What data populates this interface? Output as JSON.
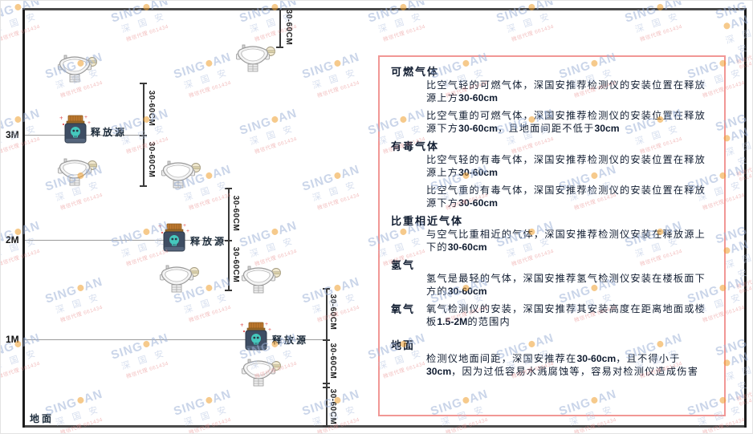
{
  "brand": {
    "watermark_main_pre": "SING",
    "watermark_main_post": "AN",
    "watermark_sub": "深 国 安",
    "watermark_contact": "微信代理 661434",
    "accent_dot_color": "#f0a030"
  },
  "diagram": {
    "scale_labels": [
      "3M",
      "2M",
      "1M"
    ],
    "ground_label": "地面",
    "release_source_label": "释放源",
    "dimension_label": "30-60CM",
    "colors": {
      "wall": "#1b1b1b",
      "slab": "#4a4a4a",
      "panel_border": "#f19795",
      "text": "#101c30",
      "source_body": "#3e4d63",
      "source_lid": "#c07a2e",
      "source_skull": "#45c8bd",
      "sparkle": "#e05555"
    }
  },
  "panel": {
    "sections": [
      {
        "heading": "可燃气体",
        "inline": false,
        "paragraphs": [
          [
            {
              "t": "比空气轻的可燃气体，深国安推荐检测仪的安装位置在释放源上方"
            },
            {
              "t": "30-60cm",
              "b": true
            }
          ],
          [
            {
              "t": "比空气重的可燃气体，深国安推荐检测仪的安装位置在释放源下方"
            },
            {
              "t": "30-60cm",
              "b": true
            },
            {
              "t": "，且地面间距不低于"
            },
            {
              "t": "30cm",
              "b": true
            }
          ]
        ]
      },
      {
        "heading": "有毒气体",
        "inline": false,
        "paragraphs": [
          [
            {
              "t": "比空气轻的有毒气体，深国安推荐检测仪的安装位置在释放源上方"
            },
            {
              "t": "30-60cm",
              "b": true
            }
          ],
          [
            {
              "t": "比空气重的有毒气体，深国安推荐检测仪的安装位置在释放源下方"
            },
            {
              "t": "30-60cm",
              "b": true
            }
          ]
        ]
      },
      {
        "heading": "比重相近气体",
        "inline": false,
        "paragraphs": [
          [
            {
              "t": "与空气比重相近的气体，深国安推荐检测仪安装在释放源上下的"
            },
            {
              "t": "30-60cm",
              "b": true
            }
          ]
        ]
      },
      {
        "heading": "氢气",
        "inline": false,
        "paragraphs": [
          [
            {
              "t": "氢气是最轻的气体，深国安推荐氢气检测仪安装在楼板面下方的"
            },
            {
              "t": "30-60cm",
              "b": true
            }
          ]
        ]
      },
      {
        "heading": "氧气",
        "inline": true,
        "paragraphs": [
          [
            {
              "t": "氧气检测仪的安装，深国安推荐其安装高度在距离地面或楼板"
            },
            {
              "t": "1.5-2M",
              "b": true
            },
            {
              "t": "的范围内"
            }
          ]
        ]
      },
      {
        "heading": "地面",
        "inline": false,
        "paragraphs": [
          [
            {
              "t": "检测仪地面间距，深国安推荐在"
            },
            {
              "t": "30-60cm",
              "b": true
            },
            {
              "t": "，且不得小于"
            },
            {
              "t": "30cm",
              "b": true
            },
            {
              "t": "，因为过低容易水溅腐蚀等，容易对检测仪造成伤害"
            }
          ]
        ]
      }
    ]
  }
}
